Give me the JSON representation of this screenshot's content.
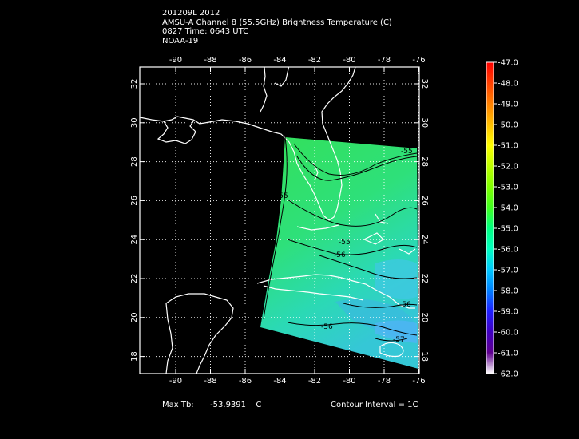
{
  "header": {
    "line1": "201209L 2012",
    "line2": "AMSU-A Channel 8 (55.5GHz) Brightness Temperature (C)",
    "line3": "0827 Time: 0643 UTC",
    "line4": "NOAA-19"
  },
  "axes": {
    "lon_ticks": [
      "-90",
      "-88",
      "-86",
      "-84",
      "-82",
      "-80",
      "-78",
      "-76"
    ],
    "lat_ticks": [
      "32",
      "30",
      "28",
      "26",
      "24",
      "22",
      "20",
      "18"
    ]
  },
  "colorbar": {
    "labels": [
      "-47.0",
      "-48.0",
      "-49.0",
      "-50.0",
      "-51.0",
      "-52.0",
      "-53.0",
      "-54.0",
      "-55.0",
      "-56.0",
      "-57.0",
      "-58.0",
      "-59.0",
      "-60.0",
      "-61.0",
      "-62.0"
    ],
    "colors": [
      "#ff0000",
      "#ff4000",
      "#ff8000",
      "#ffbf00",
      "#ffff00",
      "#bfff00",
      "#80ff00",
      "#40ff20",
      "#00ff80",
      "#00ffc0",
      "#00c8ff",
      "#0080ff",
      "#2020ff",
      "#4000c0",
      "#600090",
      "#ffffff"
    ]
  },
  "contour_labels": [
    "-55",
    "-55",
    "-55",
    "-56",
    "-56",
    "-56",
    "-57"
  ],
  "footer": {
    "max_label": "Max Tb:",
    "max_value": "-53.9391",
    "max_unit": "C",
    "contour_interval": "Contour Interval = 1C"
  }
}
